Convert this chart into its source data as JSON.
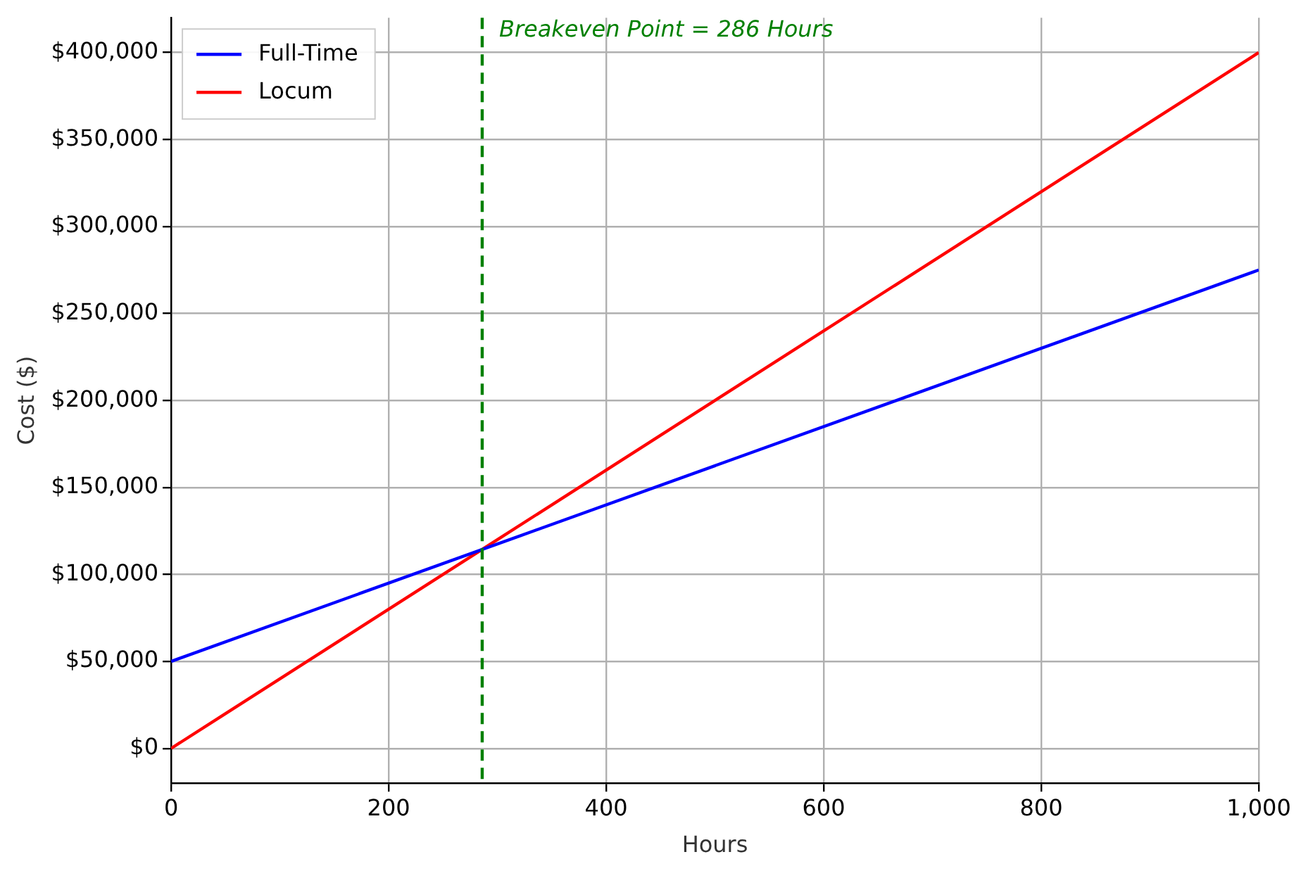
{
  "chart_data": {
    "type": "line",
    "xlabel": "Hours",
    "ylabel": "Cost ($)",
    "x": [
      0,
      1000
    ],
    "series": [
      {
        "name": "Full-Time",
        "color": "#0000ff",
        "values": [
          50000,
          275000
        ]
      },
      {
        "name": "Locum",
        "color": "#ff0000",
        "values": [
          0,
          400000
        ]
      }
    ],
    "xlim": [
      0,
      1000
    ],
    "xticks": [
      0,
      200,
      400,
      600,
      800,
      {
        "value": 1000,
        "label": "1,000"
      }
    ],
    "ylim": [
      -20000,
      420000
    ],
    "yticks": [
      {
        "value": 0,
        "label": "$0"
      },
      {
        "value": 50000,
        "label": "$50,000"
      },
      {
        "value": 100000,
        "label": "$100,000"
      },
      {
        "value": 150000,
        "label": "$150,000"
      },
      {
        "value": 200000,
        "label": "$200,000"
      },
      {
        "value": 250000,
        "label": "$250,000"
      },
      {
        "value": 300000,
        "label": "$300,000"
      },
      {
        "value": 350000,
        "label": "$350,000"
      },
      {
        "value": 400000,
        "label": "$400,000"
      }
    ],
    "ref_lines": [
      {
        "axis": "x",
        "value": 286,
        "label": "Breakeven Point = 286 Hours",
        "color": "#008000",
        "line_style": "dashed"
      }
    ],
    "grid": true,
    "legend": "top left",
    "line_style": "solid",
    "marker": "none"
  }
}
